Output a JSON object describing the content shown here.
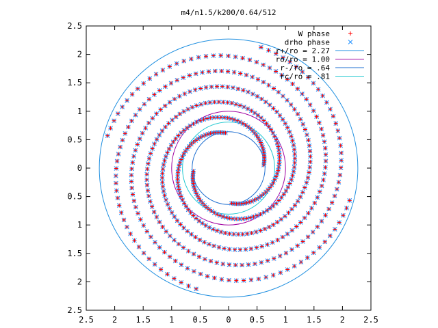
{
  "chart_data": {
    "type": "scatter",
    "title": "m4/n1.5/k200/0.64/512",
    "xlim": [
      -2.5,
      2.5
    ],
    "ylim": [
      -2.5,
      2.5
    ],
    "x_ticks": [
      -2.5,
      -2,
      -1.5,
      -1,
      -0.5,
      0,
      0.5,
      1,
      1.5,
      2,
      2.5
    ],
    "y_ticks": [
      -2.5,
      -2,
      -1.5,
      -1,
      -0.5,
      0,
      0.5,
      1,
      1.5,
      2,
      2.5
    ],
    "x_tick_labels": [
      "2.5",
      "2",
      "1.5",
      "1",
      "0.5",
      "0",
      "0.5",
      "1",
      "1.5",
      "2",
      "2.5"
    ],
    "y_tick_labels": [
      "2.5",
      "2",
      "1.5",
      "1",
      "0.5",
      "0",
      "0.5",
      "1",
      "1.5",
      "2",
      "2.5"
    ],
    "grid": false,
    "legend_position": "top-right",
    "series": [
      {
        "name": "W phase",
        "kind": "points",
        "marker": "+",
        "color": "#ff0000",
        "generator": "spiral_arms"
      },
      {
        "name": "drho phase",
        "kind": "points",
        "marker": "x",
        "color": "#1e90ff",
        "generator": "spiral_arms"
      },
      {
        "name": "r+/ro = 2.27",
        "kind": "circle",
        "r": 2.27,
        "color": "#1f8fe0"
      },
      {
        "name": "ro/ro = 1.00",
        "kind": "circle",
        "r": 1.0,
        "color": "#a000a0"
      },
      {
        "name": "r-/ro = .64",
        "kind": "circle",
        "r": 0.64,
        "color": "#1f6fd0"
      },
      {
        "name": "rc/ro = .81",
        "kind": "circle",
        "r": 0.81,
        "color": "#20c8d0"
      }
    ],
    "spiral_arms": [
      {
        "r_start": 0.62,
        "r_end": 2.2,
        "theta_start_deg": 95,
        "pitch_deg": 520,
        "n_points": 140
      },
      {
        "r_start": 0.62,
        "r_end": 2.2,
        "theta_start_deg": 5,
        "pitch_deg": 520,
        "n_points": 140
      },
      {
        "r_start": 0.62,
        "r_end": 2.2,
        "theta_start_deg": 275,
        "pitch_deg": 520,
        "n_points": 140
      },
      {
        "r_start": 0.62,
        "r_end": 2.2,
        "theta_start_deg": 185,
        "pitch_deg": 520,
        "n_points": 140
      }
    ]
  }
}
